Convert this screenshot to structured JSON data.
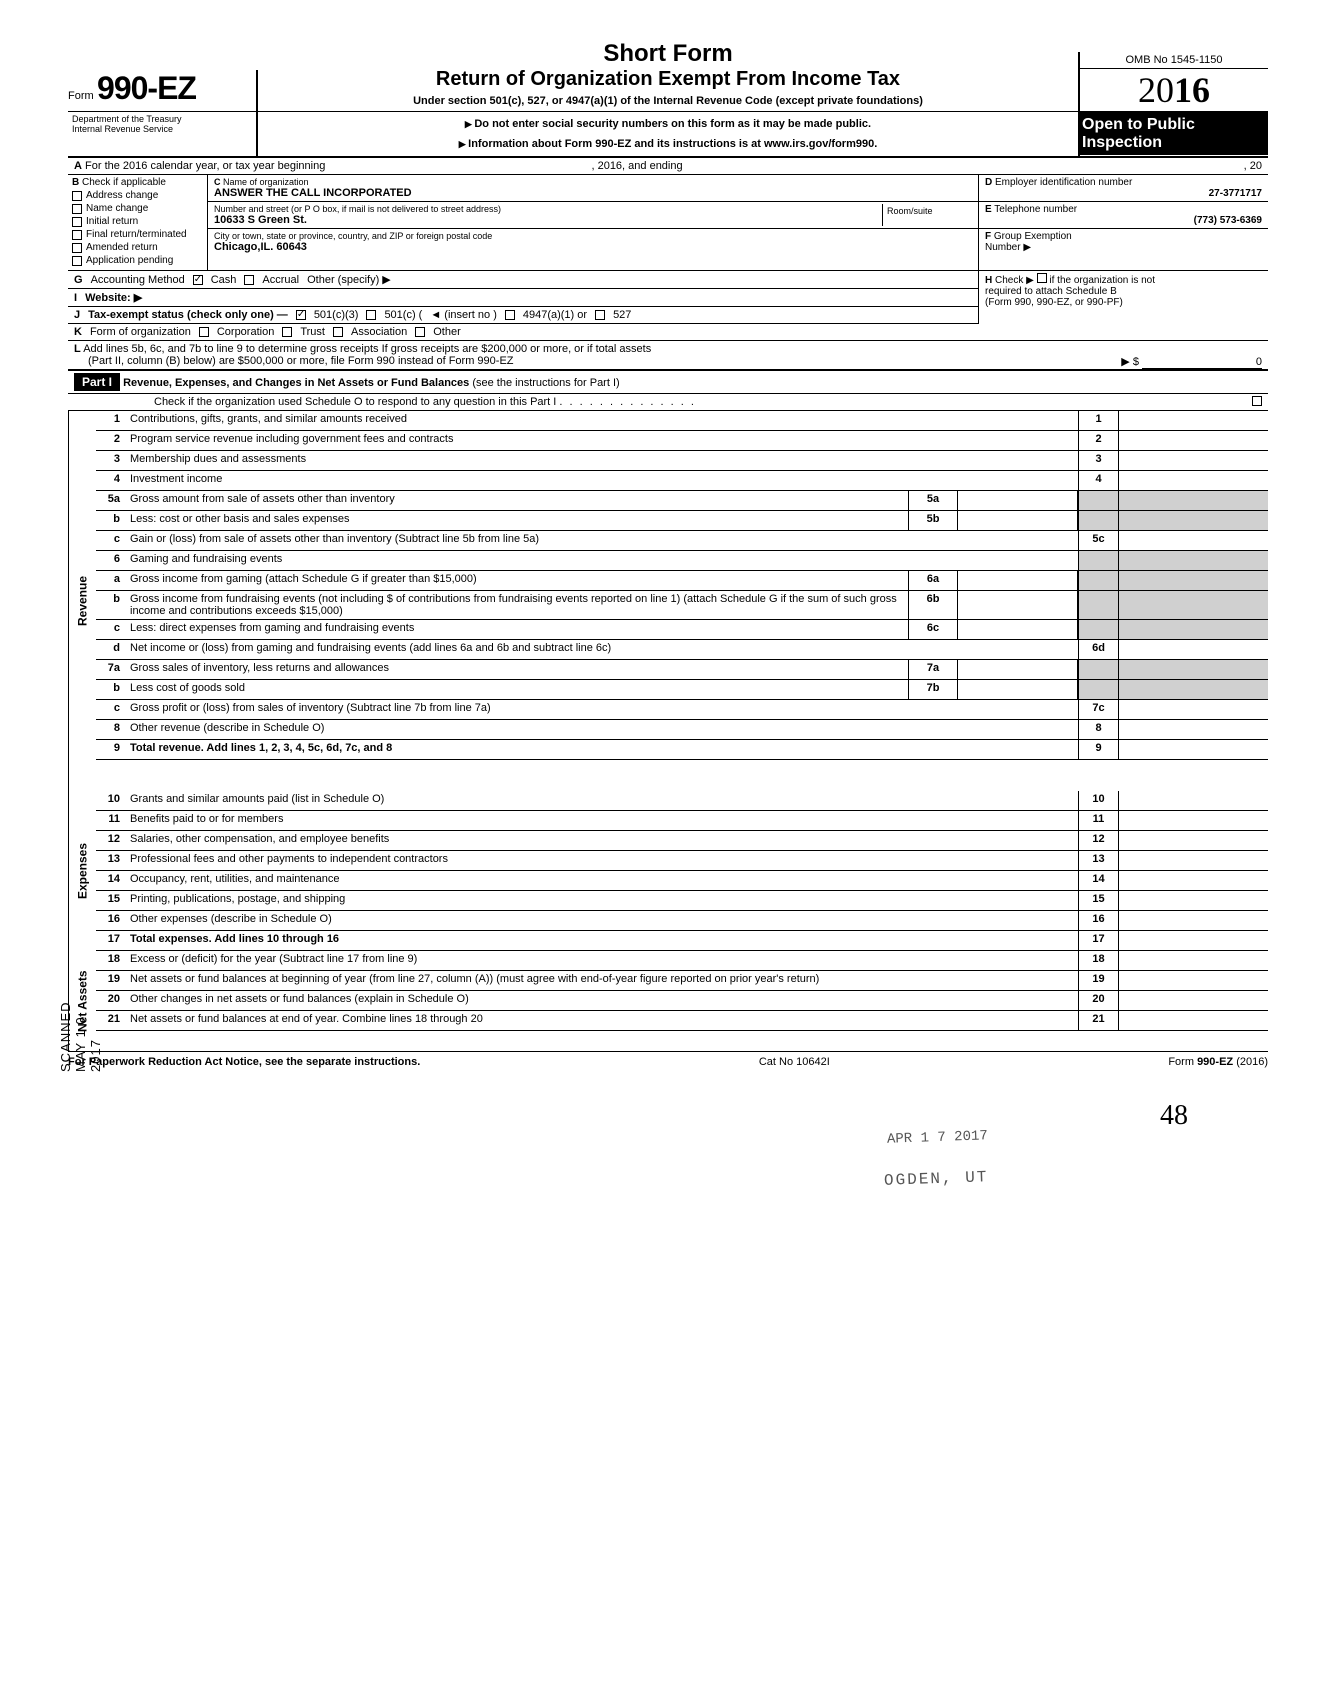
{
  "header": {
    "form_prefix": "Form",
    "form_number": "990-EZ",
    "short_form": "Short Form",
    "title": "Return of Organization Exempt From Income Tax",
    "under_section": "Under section 501(c), 527, or 4947(a)(1) of the Internal Revenue Code (except private foundations)",
    "ssn_warning": "Do not enter social security numbers on this form as it may be made public.",
    "info_line": "Information about Form 990-EZ and its instructions is at www.irs.gov/form990.",
    "omb": "OMB No 1545-1150",
    "year_prefix": "20",
    "year_bold": "16",
    "open_public_1": "Open to Public",
    "open_public_2": "Inspection",
    "dept": "Department of the Treasury",
    "irs": "Internal Revenue Service"
  },
  "row_a": {
    "label_a": "A",
    "text": "For the 2016 calendar year, or tax year beginning",
    "mid": ", 2016, and ending",
    "end": ", 20"
  },
  "col_b": {
    "label": "B",
    "check_if": "Check if applicable",
    "items": [
      "Address change",
      "Name change",
      "Initial return",
      "Final return/terminated",
      "Amended return",
      "Application pending"
    ]
  },
  "col_c": {
    "label": "C",
    "name_lbl": "Name of organization",
    "name": "ANSWER THE CALL INCORPORATED",
    "street_lbl": "Number and street (or P O  box, if mail is not delivered to street address)",
    "street": "10633 S Green St.",
    "room_lbl": "Room/suite",
    "city_lbl": "City or town, state or province, country, and ZIP or foreign postal code",
    "city": "Chicago,IL. 60643"
  },
  "col_d": {
    "label": "D",
    "lbl": "Employer identification number",
    "val": "27-3771717"
  },
  "col_e": {
    "label": "E",
    "lbl": "Telephone number",
    "val": "(773) 573-6369"
  },
  "col_f": {
    "label": "F",
    "lbl": "Group Exemption",
    "num": "Number ▶"
  },
  "row_g": {
    "label": "G",
    "text": "Accounting Method",
    "cash": "Cash",
    "accrual": "Accrual",
    "other": "Other (specify) ▶"
  },
  "row_h": {
    "label": "H",
    "text1": "Check ▶",
    "text2": "if the organization is not",
    "text3": "required to attach Schedule B",
    "text4": "(Form 990, 990-EZ, or 990-PF)"
  },
  "row_i": {
    "label": "I",
    "text": "Website: ▶"
  },
  "row_j": {
    "label": "J",
    "text": "Tax-exempt status (check only one) —",
    "c3": "501(c)(3)",
    "c": "501(c) (",
    "insert": "◄ (insert no )",
    "a1": "4947(a)(1) or",
    "s527": "527"
  },
  "row_k": {
    "label": "K",
    "text": "Form of organization",
    "corp": "Corporation",
    "trust": "Trust",
    "assoc": "Association",
    "other": "Other"
  },
  "row_l": {
    "label": "L",
    "text1": "Add lines 5b, 6c, and 7b to line 9 to determine gross receipts  If gross receipts are $200,000 or more, or if total assets",
    "text2": "(Part II, column (B) below) are $500,000 or more, file Form 990 instead of Form 990-EZ",
    "arrow": "▶  $",
    "zero": "0"
  },
  "part1": {
    "label": "Part I",
    "title": "Revenue, Expenses, and Changes in Net Assets or Fund Balances",
    "paren": "(see the instructions for Part I)",
    "check_o": "Check if the organization used Schedule O to respond to any question in this Part I"
  },
  "lines": {
    "l1": {
      "n": "1",
      "t": "Contributions, gifts, grants, and similar amounts received",
      "r": "1"
    },
    "l2": {
      "n": "2",
      "t": "Program service revenue including government fees and contracts",
      "r": "2"
    },
    "l3": {
      "n": "3",
      "t": "Membership dues and assessments",
      "r": "3"
    },
    "l4": {
      "n": "4",
      "t": "Investment income",
      "r": "4"
    },
    "l5a": {
      "n": "5a",
      "t": "Gross amount from sale of assets other than inventory",
      "ib": "5a"
    },
    "l5b": {
      "n": "b",
      "t": "Less: cost or other basis and sales expenses",
      "ib": "5b"
    },
    "l5c": {
      "n": "c",
      "t": "Gain or (loss) from sale of assets other than inventory (Subtract line 5b from line 5a)",
      "r": "5c"
    },
    "l6": {
      "n": "6",
      "t": "Gaming and fundraising events"
    },
    "l6a": {
      "n": "a",
      "t": "Gross income from gaming (attach Schedule G if greater than $15,000)",
      "ib": "6a"
    },
    "l6b": {
      "n": "b",
      "t": "Gross income from fundraising events (not including  $                   of contributions from fundraising events reported on line 1) (attach Schedule G if the sum of such gross income and contributions exceeds $15,000)",
      "ib": "6b"
    },
    "l6c": {
      "n": "c",
      "t": "Less: direct expenses from gaming and fundraising events",
      "ib": "6c"
    },
    "l6d": {
      "n": "d",
      "t": "Net income or (loss) from gaming and fundraising events (add lines 6a and 6b and subtract line 6c)",
      "r": "6d"
    },
    "l7a": {
      "n": "7a",
      "t": "Gross sales of inventory, less returns and allowances",
      "ib": "7a"
    },
    "l7b": {
      "n": "b",
      "t": "Less  cost of goods sold",
      "ib": "7b"
    },
    "l7c": {
      "n": "c",
      "t": "Gross profit or (loss) from sales of inventory (Subtract line 7b from line 7a)",
      "r": "7c"
    },
    "l8": {
      "n": "8",
      "t": "Other revenue (describe in Schedule O)",
      "r": "8"
    },
    "l9": {
      "n": "9",
      "t": "Total revenue. Add lines 1, 2, 3, 4, 5c, 6d, 7c, and 8",
      "r": "9",
      "arrow": true,
      "bold": true
    },
    "l10": {
      "n": "10",
      "t": "Grants and similar amounts paid (list in Schedule O)",
      "r": "10"
    },
    "l11": {
      "n": "11",
      "t": "Benefits paid to or for members",
      "r": "11"
    },
    "l12": {
      "n": "12",
      "t": "Salaries, other compensation, and employee benefits",
      "r": "12"
    },
    "l13": {
      "n": "13",
      "t": "Professional fees and other payments to independent contractors",
      "r": "13"
    },
    "l14": {
      "n": "14",
      "t": "Occupancy, rent, utilities, and maintenance",
      "r": "14"
    },
    "l15": {
      "n": "15",
      "t": "Printing, publications, postage, and shipping",
      "r": "15"
    },
    "l16": {
      "n": "16",
      "t": "Other expenses (describe in Schedule O)",
      "r": "16"
    },
    "l17": {
      "n": "17",
      "t": "Total expenses. Add lines 10 through 16",
      "r": "17",
      "arrow": true,
      "bold": true
    },
    "l18": {
      "n": "18",
      "t": "Excess or (deficit) for the year (Subtract line 17 from line 9)",
      "r": "18"
    },
    "l19": {
      "n": "19",
      "t": "Net assets or fund balances at beginning of year (from line 27, column (A)) (must agree with end-of-year figure reported on prior year's return)",
      "r": "19"
    },
    "l20": {
      "n": "20",
      "t": "Other changes in net assets or fund balances (explain in Schedule O)",
      "r": "20"
    },
    "l21": {
      "n": "21",
      "t": "Net assets or fund balances at end of year. Combine lines 18 through 20",
      "r": "21",
      "arrow": true
    }
  },
  "side_labels": {
    "revenue": "Revenue",
    "expenses": "Expenses",
    "net_assets": "Net Assets"
  },
  "footer": {
    "left": "For Paperwork Reduction Act Notice, see the separate instructions.",
    "mid": "Cat  No  10642I",
    "right_pre": "Form ",
    "right_b": "990-EZ",
    "right_post": " (2016)"
  },
  "stamps": {
    "date": "APR 1 7 2017",
    "loc": "OGDEN, UT",
    "scanned": "SCANNED MAY 1 0 2017",
    "hand": "48"
  }
}
